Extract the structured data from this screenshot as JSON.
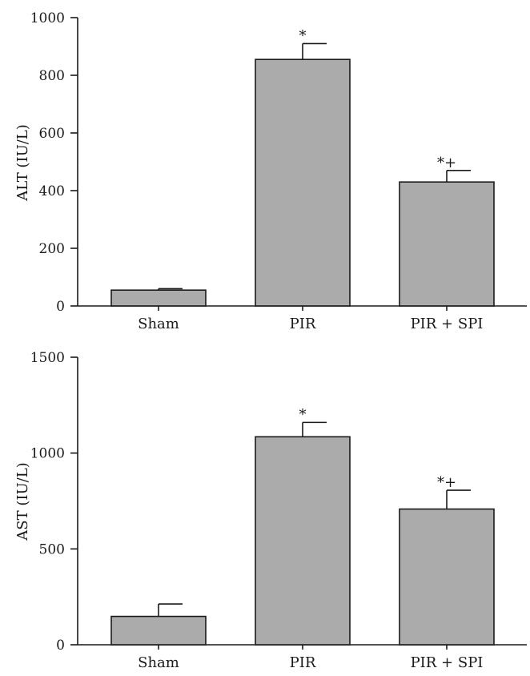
{
  "chart_data": [
    {
      "type": "bar",
      "ylabel": "ALT (IU/L)",
      "ylim": [
        0,
        1000
      ],
      "yticks": [
        "0",
        "200",
        "400",
        "600",
        "800",
        "1000"
      ],
      "categories": [
        "Sham",
        "PIR",
        "PIR + SPI"
      ],
      "values": [
        55,
        855,
        430
      ],
      "errors": [
        5,
        55,
        40
      ],
      "annotations": [
        "",
        "*",
        "*+"
      ],
      "bar_color": "#ababab"
    },
    {
      "type": "bar",
      "ylabel": "AST (IU/L)",
      "ylim": [
        0,
        1500
      ],
      "yticks": [
        "0",
        "500",
        "1000",
        "1500"
      ],
      "categories": [
        "Sham",
        "PIR",
        "PIR + SPI"
      ],
      "values": [
        148,
        1085,
        708
      ],
      "errors": [
        65,
        75,
        98
      ],
      "annotations": [
        "",
        "*",
        "*+"
      ],
      "bar_color": "#ababab"
    }
  ]
}
